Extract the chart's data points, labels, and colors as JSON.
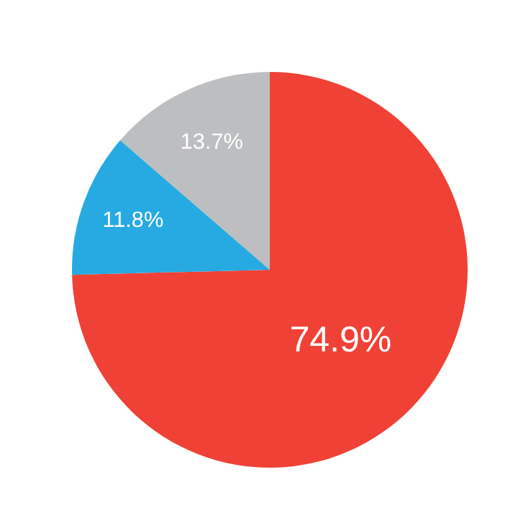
{
  "chart_data": {
    "type": "pie",
    "categories": [
      null,
      null,
      null
    ],
    "values": [
      74.9,
      11.8,
      13.7
    ],
    "colors": [
      "#f04136",
      "#27aae1",
      "#bcbec0"
    ],
    "value_labels": [
      "74.9%",
      "11.8%",
      "13.7%"
    ],
    "legend": false
  }
}
